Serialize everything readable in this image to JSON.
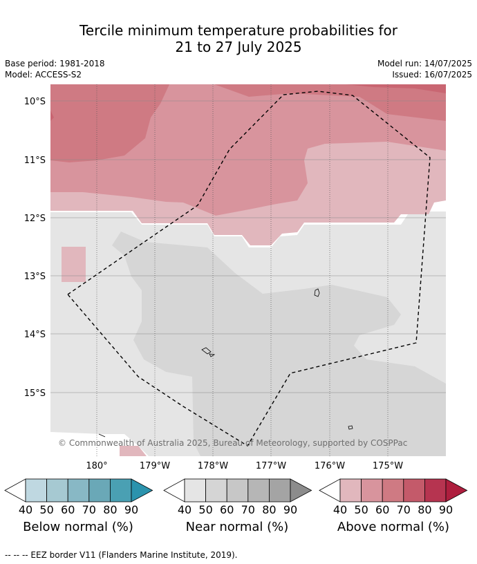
{
  "title_line1": "Tercile minimum temperature probabilities for",
  "title_line2": "21 to 27 July 2025",
  "base_period": "Base period: 1981-2018",
  "model": "Model: ACCESS-S2",
  "model_run": "Model run: 14/07/2025",
  "issued": "Issued: 16/07/2025",
  "map": {
    "lat_labels": [
      "10°S",
      "11°S",
      "12°S",
      "13°S",
      "14°S",
      "15°S"
    ],
    "lon_labels": [
      "180°",
      "179°W",
      "178°W",
      "177°W",
      "176°W",
      "175°W"
    ],
    "copyright": "© Commonwealth of Australia 2025, Bureau of Meteorology, supported by COSPPac"
  },
  "legends": [
    {
      "label": "Below normal (%)",
      "ticks": [
        "40",
        "50",
        "60",
        "70",
        "80",
        "90"
      ],
      "colors": [
        "#bfd8e1",
        "#a6c9d2",
        "#88b8c5",
        "#6aa8b7",
        "#4aa0b3",
        "#2b93ad"
      ]
    },
    {
      "label": "Near normal (%)",
      "ticks": [
        "40",
        "50",
        "60",
        "70",
        "80",
        "90"
      ],
      "colors": [
        "#e5e5e5",
        "#d5d5d5",
        "#c7c7c7",
        "#b6b6b6",
        "#a4a4a4",
        "#8c8c8c"
      ]
    },
    {
      "label": "Above normal (%)",
      "ticks": [
        "40",
        "50",
        "60",
        "70",
        "80",
        "90"
      ],
      "colors": [
        "#e1b7bd",
        "#d8949d",
        "#cf7a83",
        "#c45a6a",
        "#b63450",
        "#ae1e3e"
      ]
    }
  ],
  "footer": "--  --  -- EEZ border V11 (Flanders Marine Institute, 2019)."
}
